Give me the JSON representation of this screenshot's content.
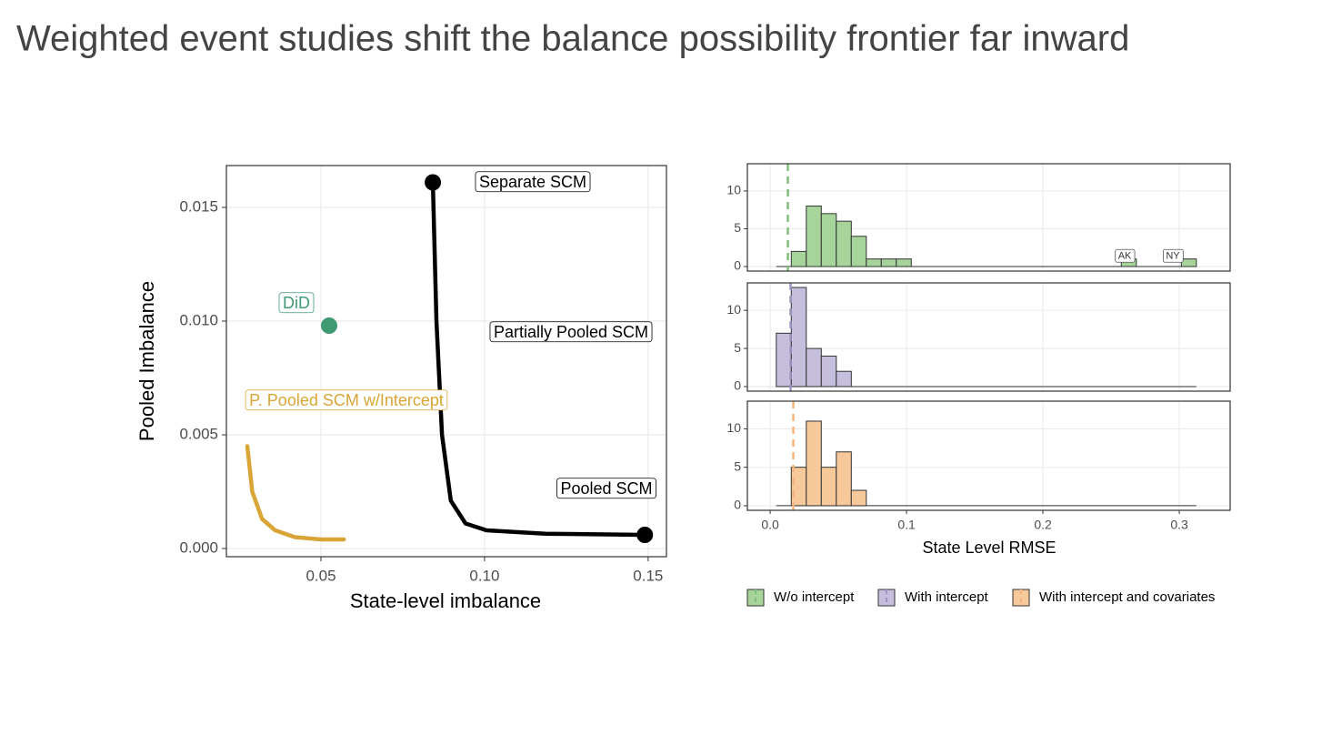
{
  "title": "Weighted event studies shift the balance possibility frontier far inward",
  "chart_data": [
    {
      "type": "line",
      "x_label": "State-level imbalance",
      "y_label": "Pooled Imbalance",
      "xlim": [
        0.0211,
        0.1556
      ],
      "ylim": [
        -0.00036,
        0.01684
      ],
      "xticks": [
        0.05,
        {
          "value": 0.1,
          "label": "0.10"
        },
        0.15
      ],
      "yticks": [
        {
          "value": 0,
          "label": "0.000"
        },
        0.005,
        {
          "value": 0.01,
          "label": "0.010"
        },
        {
          "value": 0.015,
          "label": "0.015"
        }
      ],
      "grid": true,
      "series": [
        {
          "name": "Partially Pooled SCM",
          "color": "#000000",
          "marker": false,
          "x": [
            0.0842,
            0.0853,
            0.087,
            0.0897,
            0.0942,
            0.1006,
            0.1186,
            0.149
          ],
          "values": [
            0.0161,
            0.01,
            0.005,
            0.0021,
            0.0011,
            0.0008,
            0.00065,
            0.0006
          ]
        },
        {
          "name": "P. Pooled SCM w/Intercept",
          "color": "#d9a536",
          "marker": false,
          "x": [
            0.0275,
            0.029,
            0.032,
            0.036,
            0.042,
            0.05,
            0.057
          ],
          "values": [
            0.0045,
            0.0025,
            0.0013,
            0.0008,
            0.0005,
            0.0004,
            0.0004
          ]
        },
        {
          "name": "Separate SCM",
          "color": "#000000",
          "marker": true,
          "x": [
            0.0842
          ],
          "values": [
            0.0161
          ]
        },
        {
          "name": "Pooled SCM",
          "color": "#000000",
          "marker": true,
          "x": [
            0.149
          ],
          "values": [
            0.0006
          ]
        },
        {
          "name": "DiD",
          "color": "#3f9a73",
          "marker": true,
          "x": [
            0.0525
          ],
          "values": [
            0.0098
          ]
        }
      ]
    },
    {
      "type": "histogram",
      "x_label": "State Level RMSE",
      "bins": [
        0.0045,
        0.0155,
        0.0265,
        0.0375,
        0.0485,
        0.0595,
        0.0705,
        0.0815,
        0.0925,
        0.1035,
        0.1145,
        0.1255,
        0.1365,
        0.1475,
        0.1585,
        0.1695,
        0.1805,
        0.1915,
        0.2025,
        0.2135,
        0.2245,
        0.2355,
        0.2465,
        0.2575,
        0.2685,
        0.2795,
        0.2905,
        0.3015,
        0.3125
      ],
      "xlim": [
        -0.0167,
        0.3373
      ],
      "ylim": [
        -0.6,
        13.6
      ],
      "xticks": [
        {
          "value": 0,
          "label": "0.0"
        },
        0.1,
        0.2,
        0.3
      ],
      "yticks": [
        0,
        5,
        10
      ],
      "grid": true,
      "legend": "bottom",
      "series": [
        {
          "name": "W/o intercept",
          "color": "#a6d49a",
          "line_color": "#7fbf7b",
          "vline": 0.013,
          "values": [
            0,
            2,
            8,
            7,
            6,
            4,
            1,
            1,
            1,
            0,
            0,
            0,
            0,
            0,
            0,
            0,
            0,
            0,
            0,
            0,
            0,
            0,
            0,
            1,
            0,
            0,
            0,
            1
          ]
        },
        {
          "name": "With intercept",
          "color": "#c5bedd",
          "line_color": "#9e94c2",
          "vline": 0.015,
          "values": [
            7,
            13,
            5,
            4,
            2,
            0,
            0,
            0,
            0,
            0,
            0,
            0,
            0,
            0,
            0,
            0,
            0,
            0,
            0,
            0,
            0,
            0,
            0,
            0,
            0,
            0,
            0,
            0
          ]
        },
        {
          "name": "With intercept and covariates",
          "color": "#f7c99a",
          "line_color": "#f3b57b",
          "vline": 0.017,
          "values": [
            0,
            5,
            11,
            5,
            7,
            2,
            0,
            0,
            0,
            0,
            0,
            0,
            0,
            0,
            0,
            0,
            0,
            0,
            0,
            0,
            0,
            0,
            0,
            0,
            0,
            0,
            0,
            0
          ]
        }
      ],
      "annotations": [
        {
          "text": "AK",
          "x": 0.26,
          "y": 1.4,
          "series": 0
        },
        {
          "text": "NY",
          "x": 0.2953,
          "y": 1.4,
          "series": 0
        }
      ]
    }
  ]
}
